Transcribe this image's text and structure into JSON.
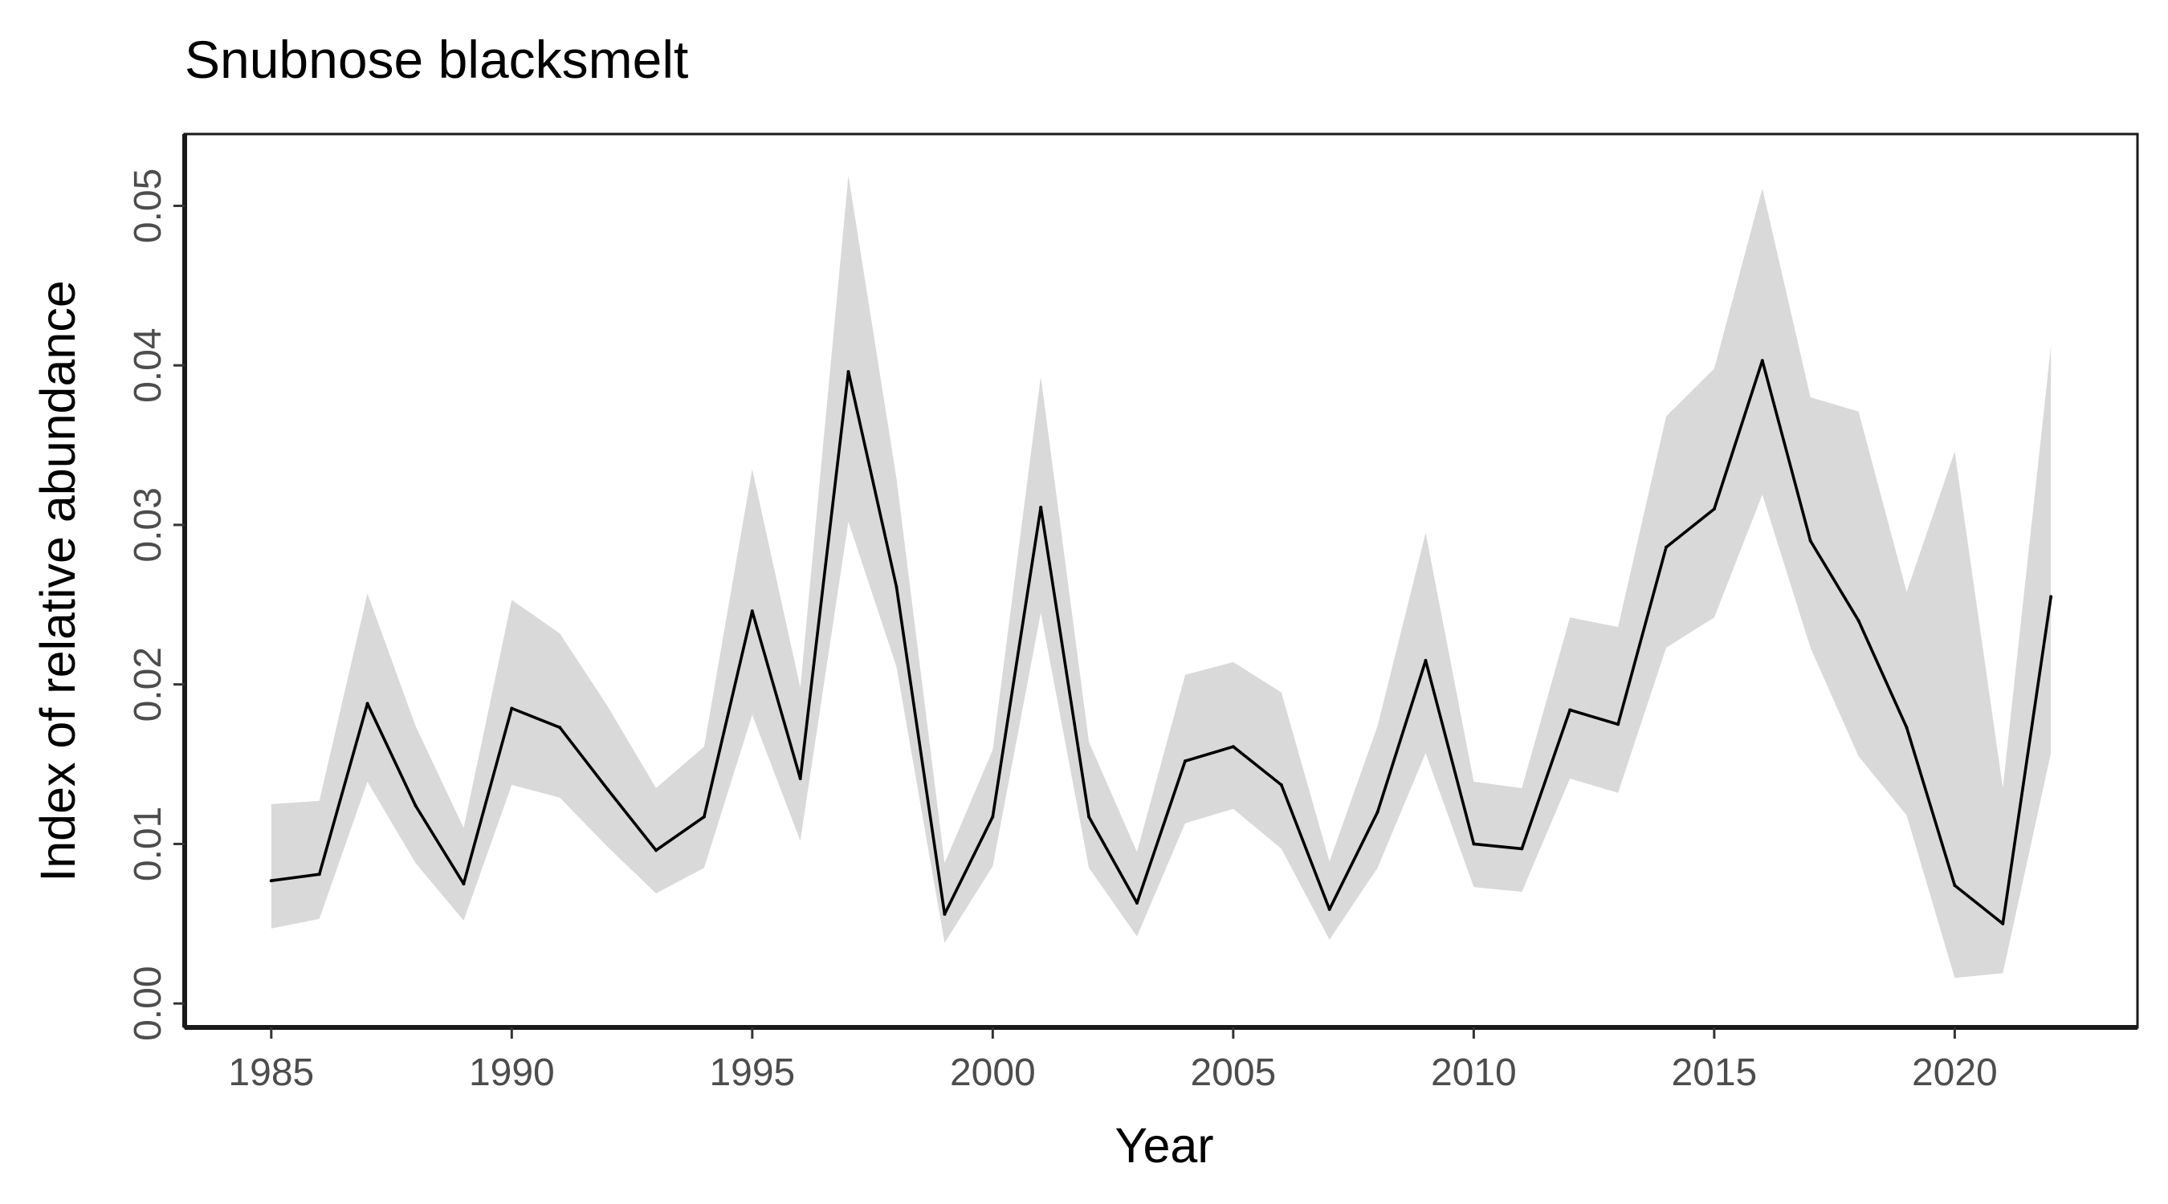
{
  "chart_data": {
    "type": "line",
    "title": "Snubnose blacksmelt",
    "xlabel": "Year",
    "ylabel": "Index of relative abundance",
    "xlim": [
      1983.2,
      2023.8
    ],
    "ylim": [
      -0.0015,
      0.0545
    ],
    "x_ticks": [
      1985,
      1990,
      1995,
      2000,
      2005,
      2010,
      2015,
      2020
    ],
    "x_tick_labels": [
      "1985",
      "1990",
      "1995",
      "2000",
      "2005",
      "2010",
      "2015",
      "2020"
    ],
    "y_ticks": [
      0.0,
      0.01,
      0.02,
      0.03,
      0.04,
      0.05
    ],
    "y_tick_labels": [
      "0.00",
      "0.01",
      "0.02",
      "0.03",
      "0.04",
      "0.05"
    ],
    "grid": false,
    "colors": {
      "line": "#000000",
      "band": "#d9d9d9",
      "tick_label": "#4d4d4d"
    },
    "series": [
      {
        "x": [
          1985,
          1986,
          1987,
          1988,
          1989,
          1990,
          1991,
          1992,
          1993,
          1994,
          1995,
          1996,
          1997,
          1998,
          1999,
          2000,
          2001,
          2002,
          2003,
          2004,
          2005,
          2006,
          2007,
          2008,
          2009,
          2010,
          2011,
          2012,
          2013,
          2014,
          2015,
          2016,
          2017,
          2018,
          2019,
          2020,
          2021,
          2022
        ],
        "y": [
          0.0077,
          0.0081,
          0.0188,
          0.0124,
          0.0075,
          0.0185,
          0.0173,
          0.0134,
          0.0096,
          0.0117,
          0.0246,
          0.0141,
          0.0396,
          0.0261,
          0.0056,
          0.0117,
          0.0311,
          0.0117,
          0.0063,
          0.0152,
          0.0161,
          0.0137,
          0.0059,
          0.012,
          0.0215,
          0.01,
          0.0097,
          0.0184,
          0.0175,
          0.0286,
          0.031,
          0.0403,
          0.029,
          0.024,
          0.0173,
          0.0074,
          0.005,
          0.0255
        ],
        "lower": [
          0.0047,
          0.0053,
          0.0139,
          0.0088,
          0.0052,
          0.0137,
          0.0129,
          0.0098,
          0.0069,
          0.0085,
          0.0181,
          0.0102,
          0.0302,
          0.0211,
          0.0038,
          0.0086,
          0.0245,
          0.0085,
          0.0042,
          0.0113,
          0.0122,
          0.0097,
          0.004,
          0.0085,
          0.0157,
          0.0073,
          0.007,
          0.0141,
          0.0132,
          0.0223,
          0.0242,
          0.0319,
          0.0223,
          0.0155,
          0.0118,
          0.0016,
          0.0019,
          0.0157
        ],
        "upper": [
          0.0125,
          0.0127,
          0.0257,
          0.0174,
          0.011,
          0.0253,
          0.0232,
          0.0186,
          0.0135,
          0.0161,
          0.0335,
          0.0198,
          0.0519,
          0.0329,
          0.0088,
          0.0159,
          0.0393,
          0.0164,
          0.0095,
          0.0206,
          0.0214,
          0.0195,
          0.0089,
          0.0174,
          0.0295,
          0.0139,
          0.0135,
          0.0242,
          0.0236,
          0.0368,
          0.0398,
          0.0511,
          0.038,
          0.0371,
          0.0258,
          0.0346,
          0.0135,
          0.0412
        ]
      }
    ]
  }
}
